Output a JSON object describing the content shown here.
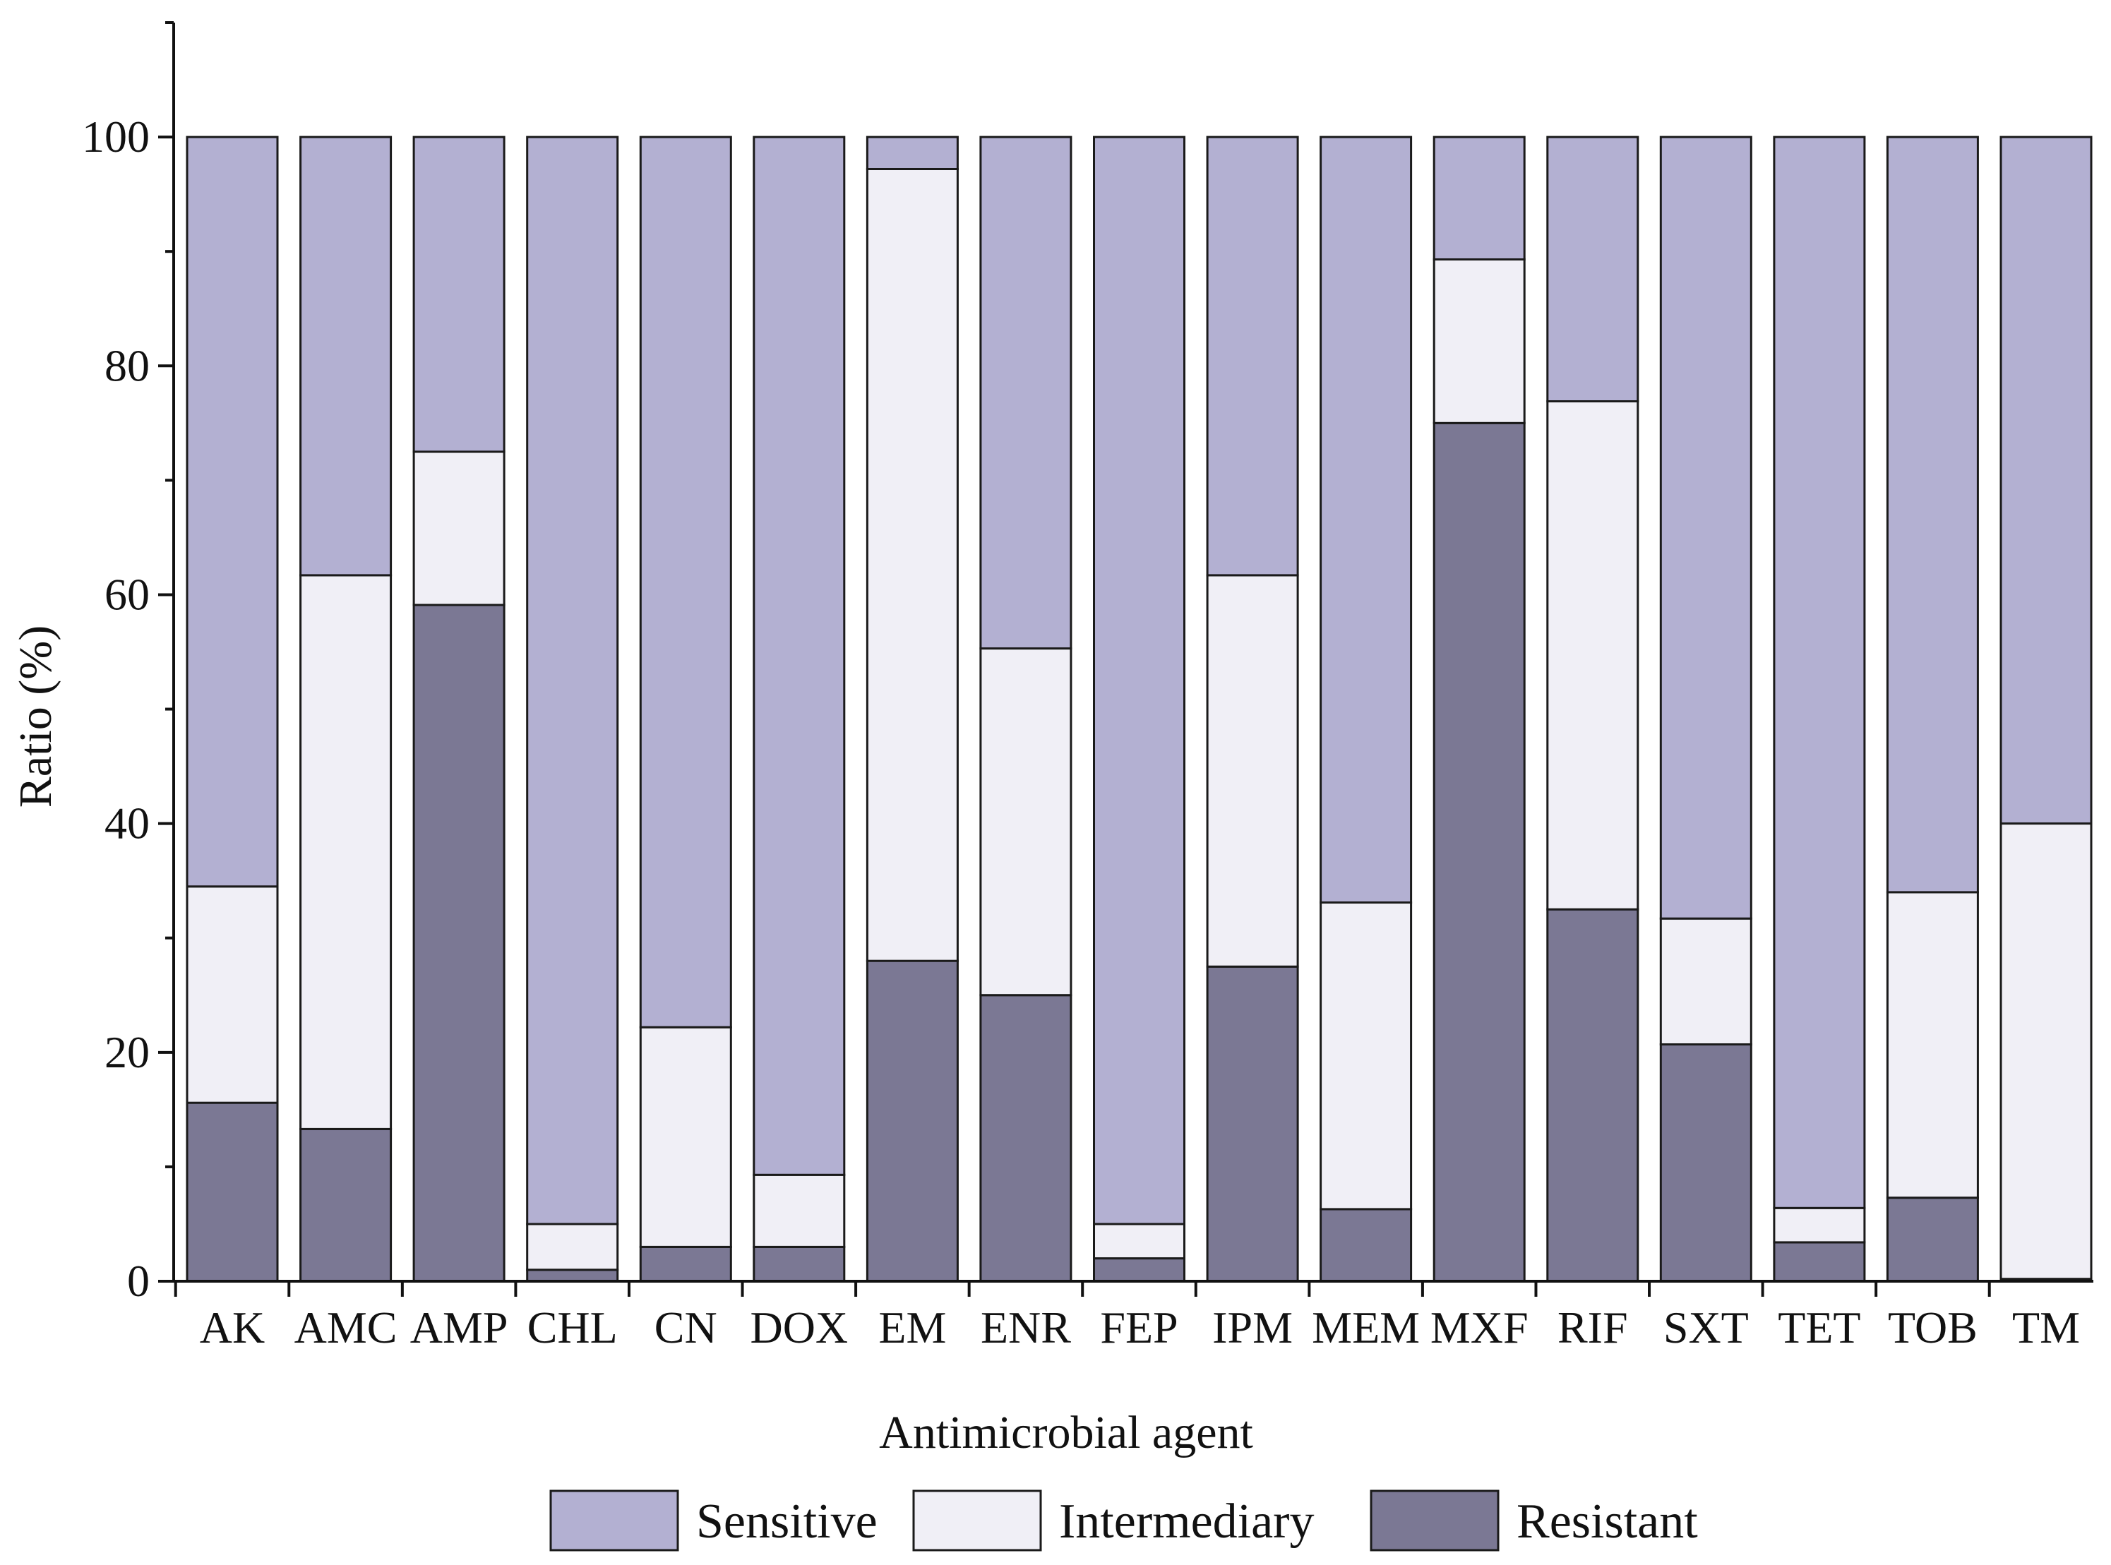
{
  "chart_data": {
    "type": "bar",
    "stacked": true,
    "title": "",
    "xlabel": "Antimicrobial agent",
    "ylabel": "Ratio (%)",
    "ylim": [
      0,
      110
    ],
    "yticks": [
      "0",
      "20",
      "40",
      "60",
      "80",
      "100"
    ],
    "grid": false,
    "legend_position": "bottom-center",
    "categories": [
      "AK",
      "AMC",
      "AMP",
      "CHL",
      "CN",
      "DOX",
      "EM",
      "ENR",
      "FEP",
      "IPM",
      "MEM",
      "MXF",
      "RIF",
      "SXT",
      "TET",
      "TOB",
      "TM"
    ],
    "series": [
      {
        "name": "Resistant",
        "color": "#7b7894",
        "values": [
          15.6,
          13.3,
          59.1,
          1.0,
          3.0,
          3.0,
          28.0,
          25.0,
          2.0,
          27.5,
          6.3,
          75.0,
          32.5,
          20.7,
          3.4,
          7.3,
          0.2
        ]
      },
      {
        "name": "Intermediary",
        "color": "#f0eff6",
        "values": [
          18.9,
          48.4,
          13.4,
          4.0,
          19.2,
          6.3,
          69.2,
          30.3,
          3.0,
          34.2,
          26.8,
          14.3,
          44.4,
          11.0,
          3.0,
          26.7,
          39.8
        ]
      },
      {
        "name": "Sensitive",
        "color": "#b3b0d2",
        "values": [
          65.5,
          38.3,
          27.5,
          95.0,
          77.8,
          90.7,
          2.8,
          44.7,
          95.0,
          38.3,
          66.9,
          10.7,
          23.1,
          68.3,
          93.6,
          66.0,
          60.0
        ]
      }
    ],
    "legend_order": [
      "Sensitive",
      "Intermediary",
      "Resistant"
    ]
  }
}
